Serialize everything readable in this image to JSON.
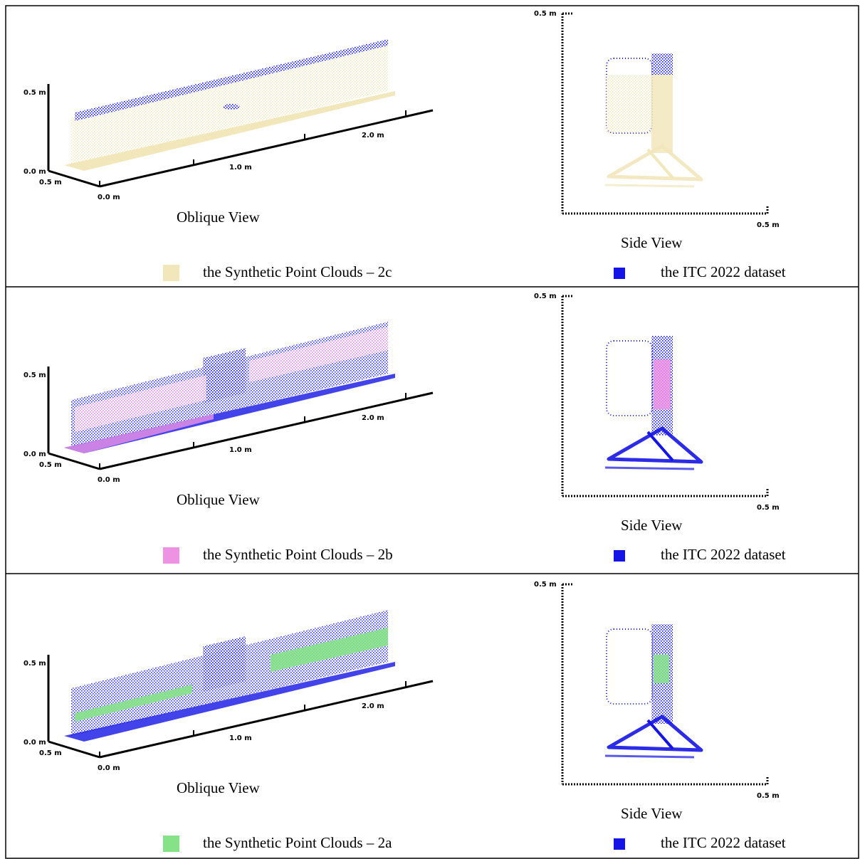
{
  "rows": [
    {
      "oblique": {
        "z_top": "0.5 m",
        "z_bottom": "0.0 m",
        "depth": "0.5 m",
        "x0": "0.0 m",
        "x1": "1.0 m",
        "x2": "2.0 m",
        "caption": "Oblique View"
      },
      "side": {
        "top": "0.5 m",
        "right": "0.5 m",
        "caption": "Side View"
      },
      "legend": [
        {
          "label": "the Synthetic Point Clouds – 2c",
          "color": "#f2e6bb"
        },
        {
          "label": "the ITC 2022 dataset",
          "color": "#1414e6"
        }
      ]
    },
    {
      "oblique": {
        "z_top": "0.5 m",
        "z_bottom": "0.0 m",
        "depth": "0.5 m",
        "x0": "0.0 m",
        "x1": "1.0 m",
        "x2": "2.0 m",
        "caption": "Oblique View"
      },
      "side": {
        "top": "0.5 m",
        "right": "0.5 m",
        "caption": "Side View"
      },
      "legend": [
        {
          "label": "the Synthetic Point Clouds – 2b",
          "color": "#ee92e4"
        },
        {
          "label": "the ITC 2022 dataset",
          "color": "#1414e6"
        }
      ]
    },
    {
      "oblique": {
        "z_top": "0.5 m",
        "z_bottom": "0.0 m",
        "depth": "0.5 m",
        "x0": "0.0 m",
        "x1": "1.0 m",
        "x2": "2.0 m",
        "caption": "Oblique View"
      },
      "side": {
        "top": "0.5 m",
        "right": "0.5 m",
        "caption": "Side View"
      },
      "legend": [
        {
          "label": "the Synthetic Point Clouds – 2a",
          "color": "#86e286"
        },
        {
          "label": "the ITC 2022 dataset",
          "color": "#1414e6"
        }
      ]
    }
  ]
}
